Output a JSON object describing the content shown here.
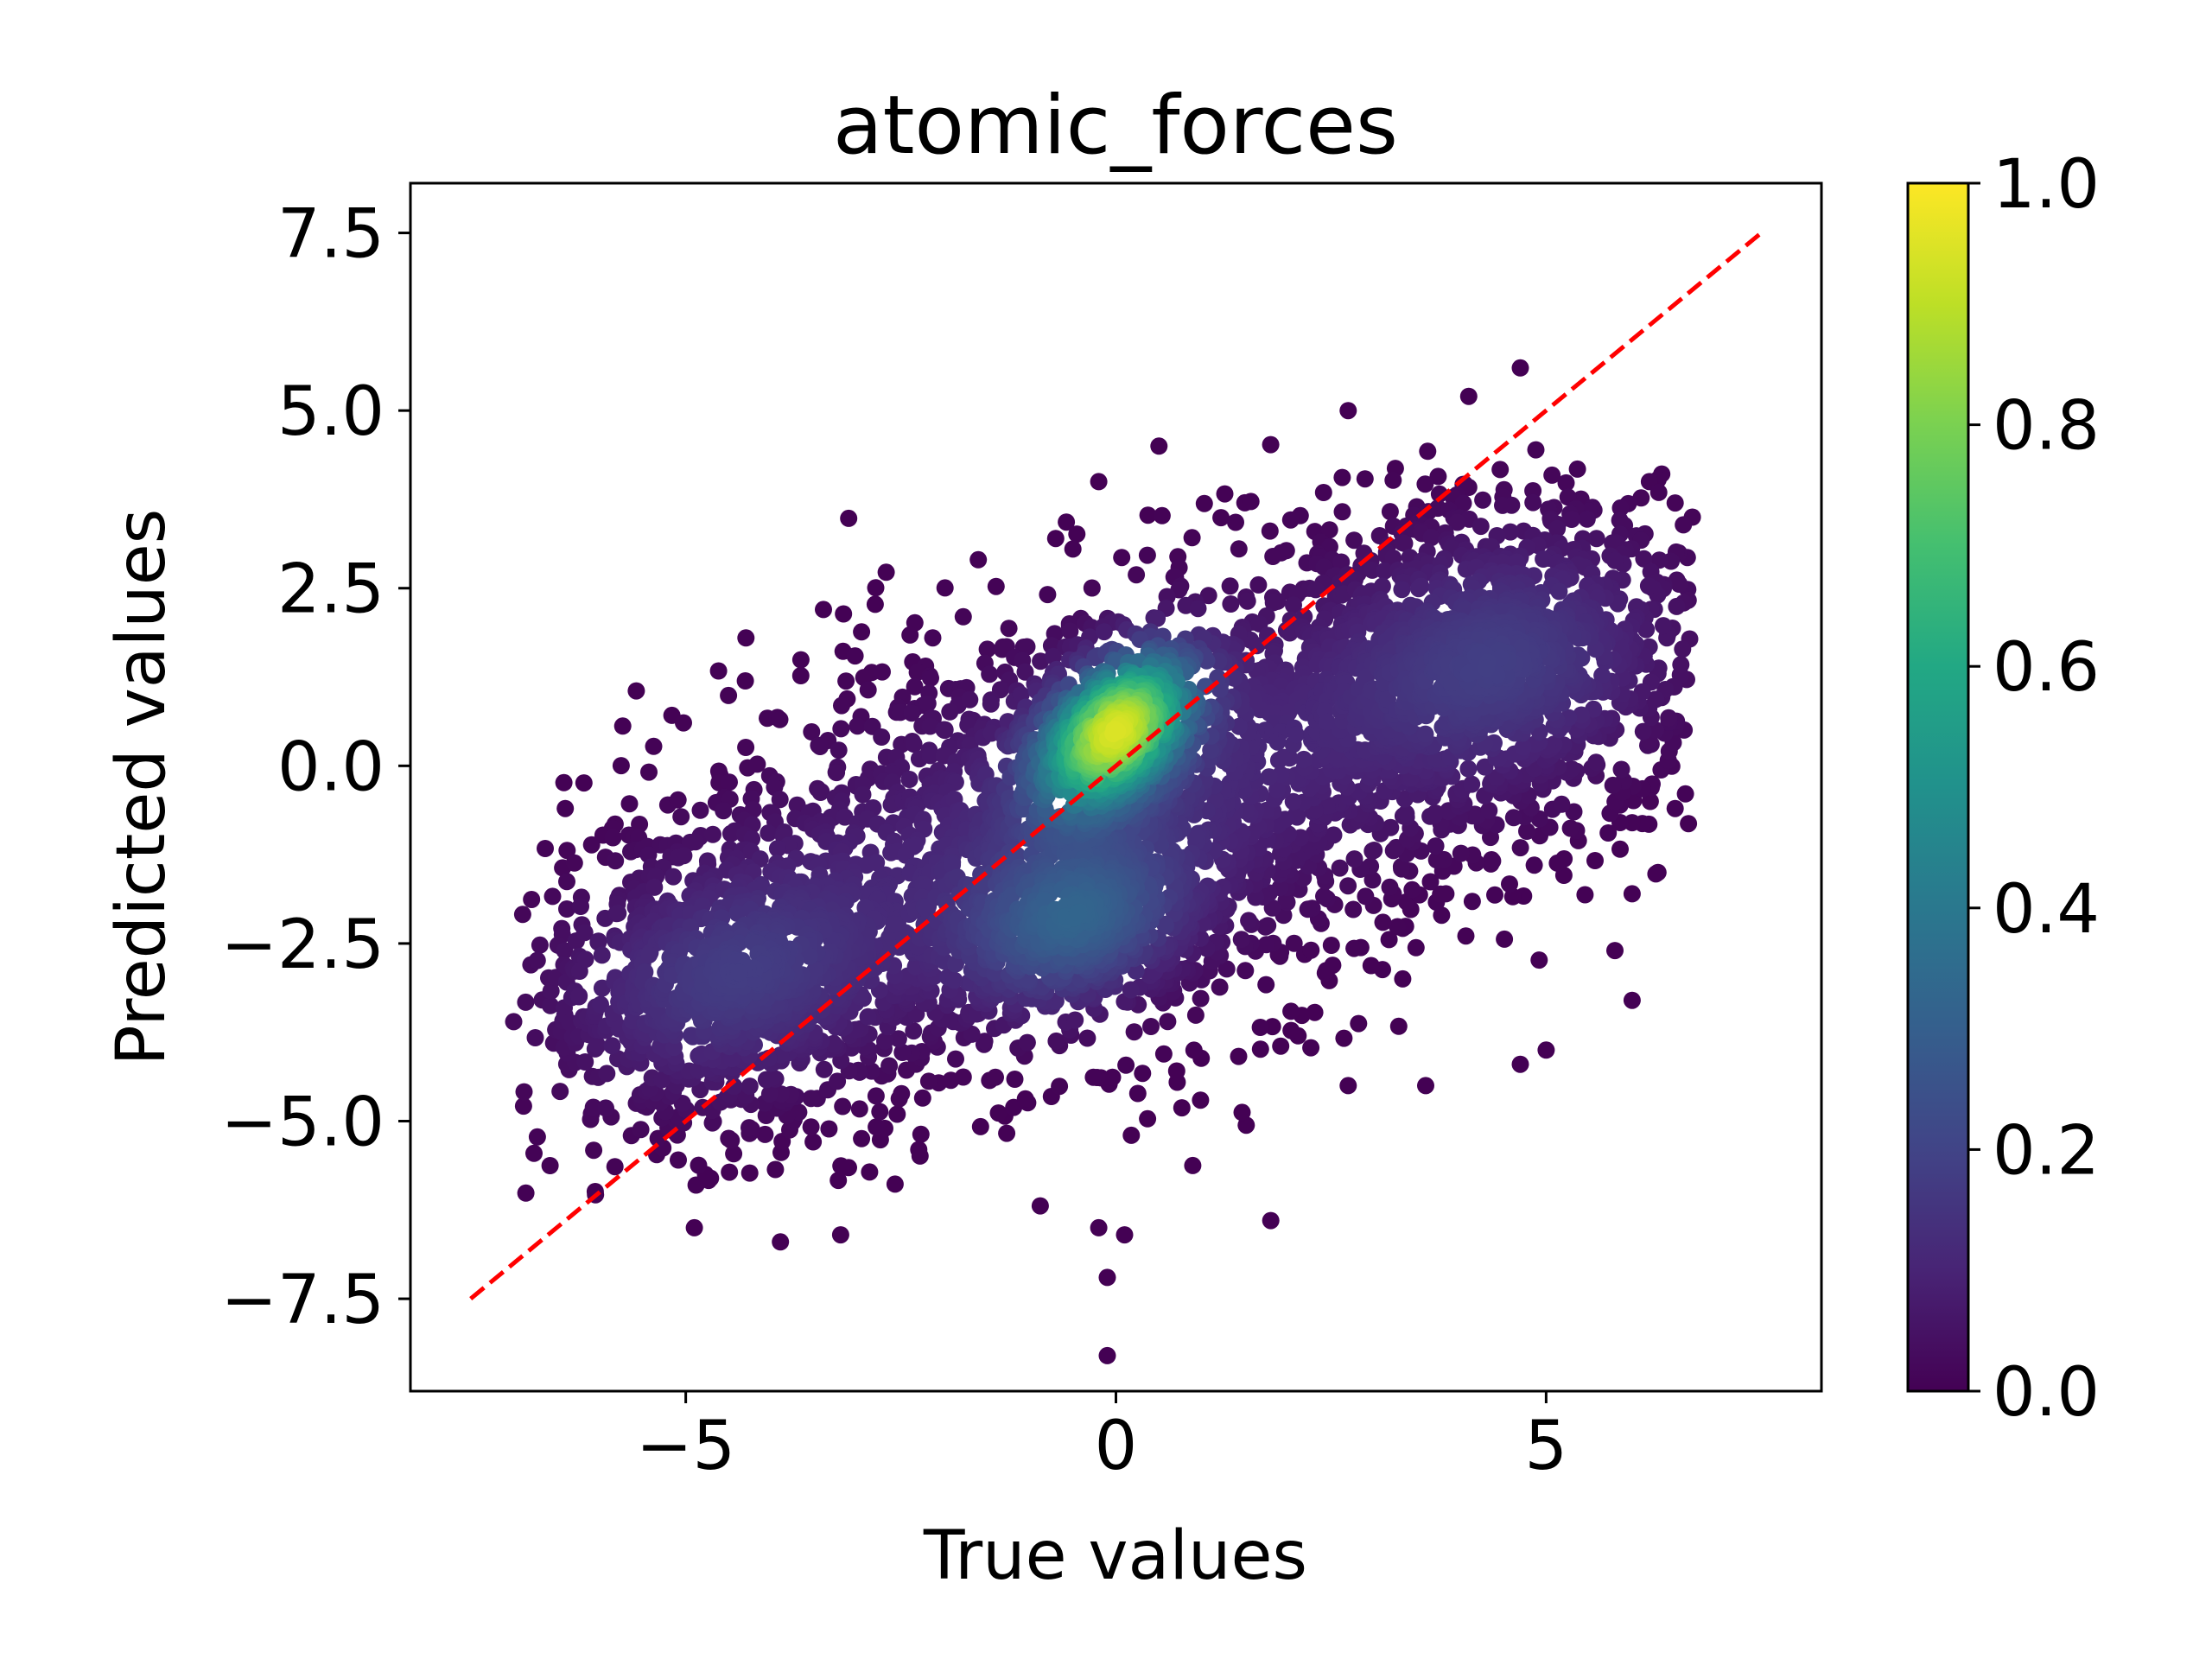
{
  "chart_data": {
    "type": "scatter",
    "title": "atomic_forces",
    "xlabel": "True values",
    "ylabel": "Predicted values",
    "xlim": [
      -8.2,
      8.2
    ],
    "ylim": [
      -8.8,
      8.2
    ],
    "xticks": [
      -5,
      0,
      5
    ],
    "xtick_labels": [
      "−5",
      "0",
      "5"
    ],
    "yticks": [
      -7.5,
      -5.0,
      -2.5,
      0.0,
      2.5,
      5.0,
      7.5
    ],
    "ytick_labels": [
      "−7.5",
      "−5.0",
      "−2.5",
      "0.0",
      "2.5",
      "5.0",
      "7.5"
    ],
    "grid": false,
    "point_color": "density (viridis colormap, normalized 0–1)",
    "density_clusters": [
      {
        "center": [
          0.0,
          0.5
        ],
        "peak_density": 1.0,
        "note": "highest density, yellow"
      },
      {
        "center": [
          -0.5,
          -2.2
        ],
        "peak_density": 0.4
      },
      {
        "center": [
          -4.5,
          -3.0
        ],
        "peak_density": 0.15
      },
      {
        "center": [
          4.5,
          1.5
        ],
        "peak_density": 0.15
      }
    ],
    "point_cloud_extent": {
      "x": [
        -7.0,
        6.8
      ],
      "y": [
        -8.3,
        5.6
      ]
    },
    "outliers": [
      [
        -0.1,
        -8.3
      ],
      [
        -0.1,
        -7.2
      ],
      [
        0.1,
        -6.6
      ],
      [
        -0.2,
        -6.5
      ],
      [
        -3.2,
        -6.6
      ],
      [
        -3.9,
        -6.7
      ],
      [
        -4.9,
        -6.5
      ],
      [
        1.8,
        -6.4
      ],
      [
        4.7,
        5.6
      ],
      [
        4.1,
        5.2
      ],
      [
        2.7,
        5.0
      ],
      [
        -4.3,
        1.8
      ],
      [
        -3.4,
        2.2
      ],
      [
        -6.4,
        -0.6
      ],
      [
        -6.8,
        -2.8
      ],
      [
        -7.0,
        -3.6
      ],
      [
        6.2,
        4.0
      ],
      [
        6.5,
        3.7
      ],
      [
        6.7,
        3.5
      ],
      [
        6.3,
        -1.5
      ],
      [
        6.5,
        -0.6
      ],
      [
        6.0,
        -0.8
      ],
      [
        6.0,
        -1.8
      ],
      [
        5.8,
        -2.6
      ],
      [
        6.0,
        -3.3
      ],
      [
        5.0,
        -4.0
      ],
      [
        4.7,
        -4.2
      ],
      [
        2.7,
        -4.5
      ],
      [
        3.6,
        -4.5
      ],
      [
        -0.2,
        4.0
      ],
      [
        -0.7,
        3.2
      ],
      [
        0.5,
        4.5
      ],
      [
        -1.6,
        2.9
      ],
      [
        6.1,
        2.2
      ],
      [
        6.3,
        1.3
      ]
    ],
    "reference_line": {
      "style": "dashed",
      "color": "#ff0000",
      "x": [
        -7.5,
        7.5
      ],
      "y": [
        -7.5,
        7.5
      ]
    },
    "colorbar": {
      "colormap": "viridis",
      "range": [
        0.0,
        1.0
      ],
      "ticks": [
        0.0,
        0.2,
        0.4,
        0.6,
        0.8,
        1.0
      ],
      "tick_labels": [
        "0.0",
        "0.2",
        "0.4",
        "0.6",
        "0.8",
        "1.0"
      ]
    }
  }
}
